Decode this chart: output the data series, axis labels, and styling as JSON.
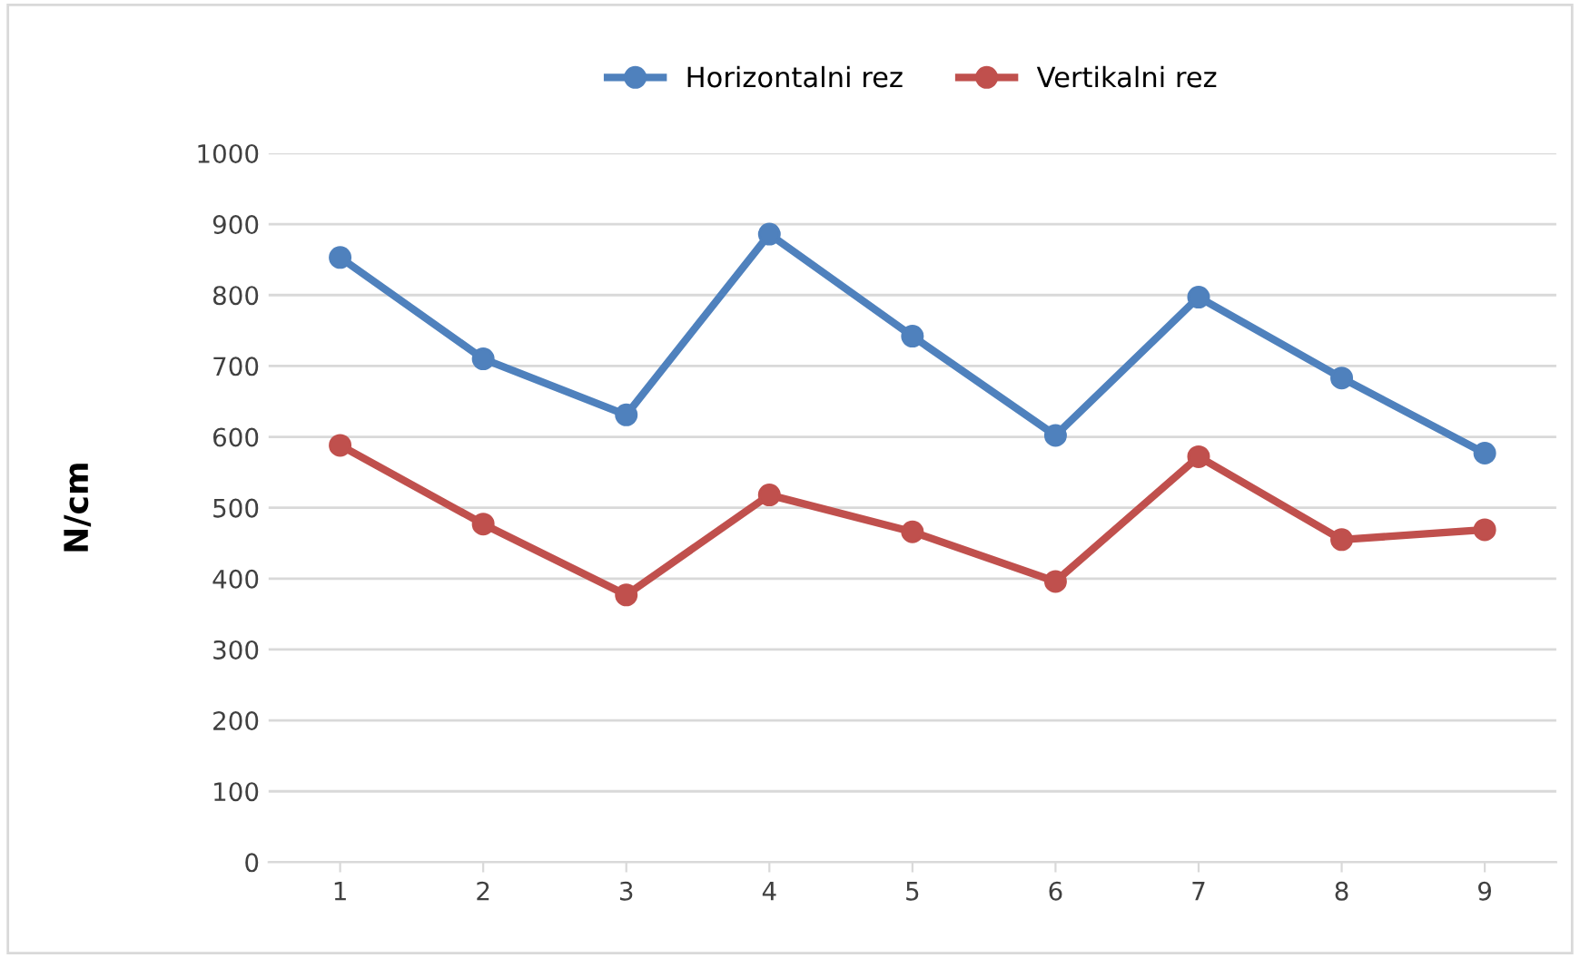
{
  "chart_data": {
    "type": "line",
    "ylabel": "N/cm",
    "categories": [
      "1",
      "2",
      "3",
      "4",
      "5",
      "6",
      "7",
      "8",
      "9"
    ],
    "series": [
      {
        "name": "Horizontalni rez",
        "color": "#4f81bd",
        "values": [
          853,
          710,
          631,
          886,
          742,
          602,
          797,
          683,
          577
        ]
      },
      {
        "name": "Vertikalni rez",
        "color": "#c0504d",
        "values": [
          588,
          477,
          377,
          518,
          466,
          396,
          572,
          455,
          469
        ]
      }
    ],
    "ylim": [
      0,
      1000
    ],
    "yticks": [
      0,
      100,
      200,
      300,
      400,
      500,
      600,
      700,
      800,
      900,
      1000
    ],
    "grid": "y",
    "legend": "top",
    "marker": "circle",
    "line_style": "solid"
  }
}
